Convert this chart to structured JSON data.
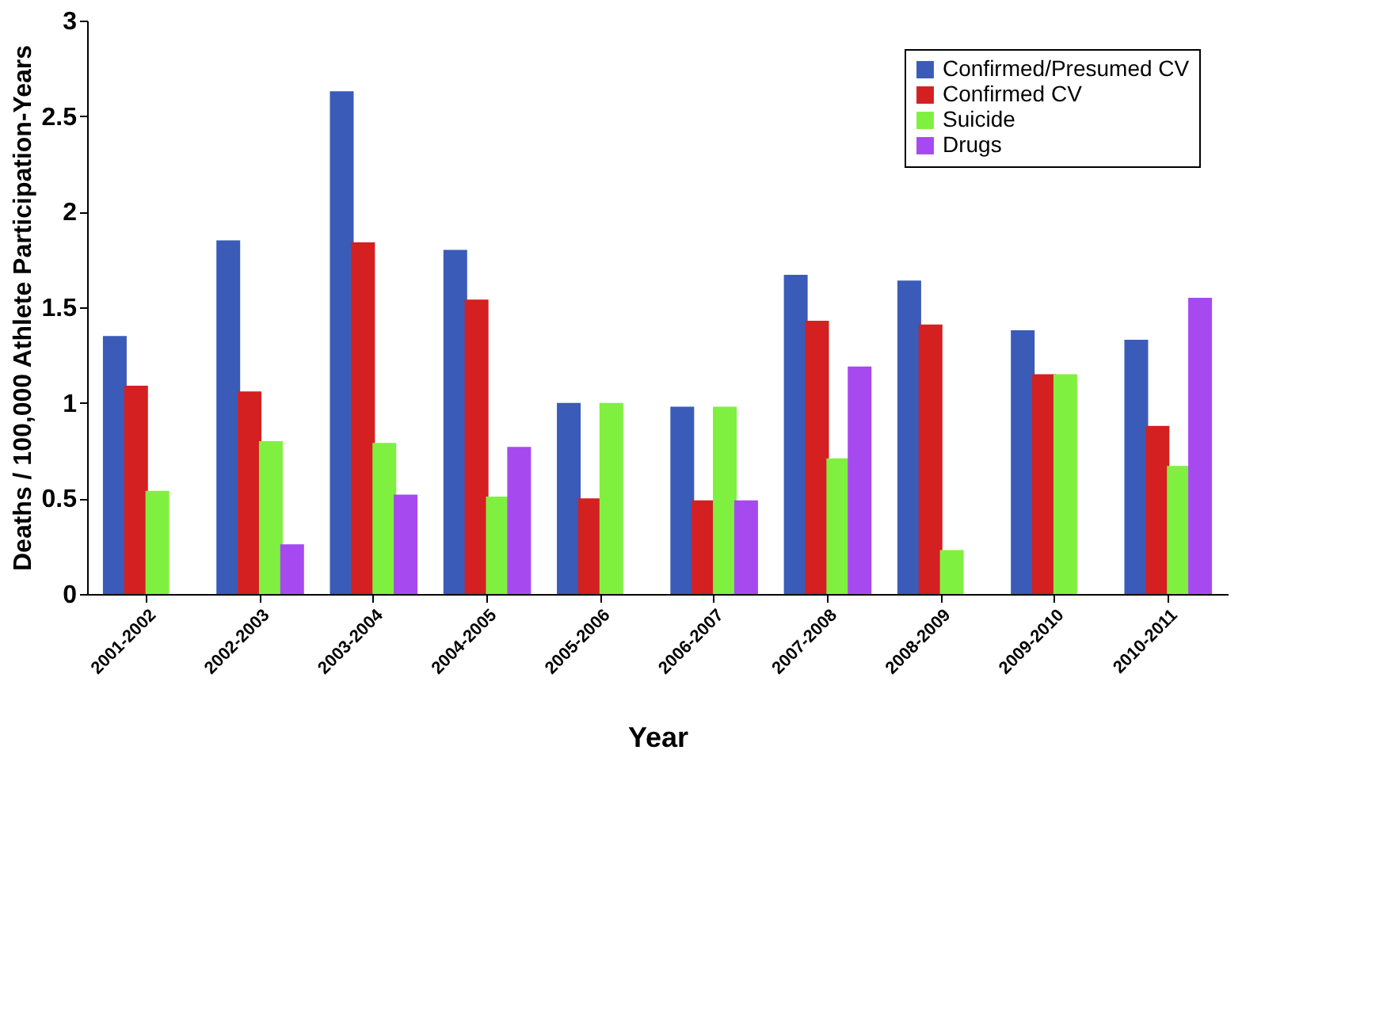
{
  "chart_data": {
    "type": "bar",
    "xlabel": "Year",
    "ylabel": "Deaths / 100,000 Athlete  Participation-Years",
    "categories": [
      "2001-2002",
      "2002-2003",
      "2003-2004",
      "2004-2005",
      "2005-2006",
      "2006-2007",
      "2007-2008",
      "2008-2009",
      "2009-2010",
      "2010-2011"
    ],
    "series": [
      {
        "name": "Confirmed/Presumed CV",
        "color": "#3a5bb8",
        "values": [
          1.35,
          1.85,
          2.63,
          1.8,
          1.0,
          0.98,
          1.67,
          1.64,
          1.38,
          1.33
        ]
      },
      {
        "name": "Confirmed CV",
        "color": "#d42020",
        "values": [
          1.09,
          1.06,
          1.84,
          1.54,
          0.5,
          0.49,
          1.43,
          1.41,
          1.15,
          0.88
        ]
      },
      {
        "name": "Suicide",
        "color": "#80f040",
        "values": [
          0.54,
          0.8,
          0.79,
          0.51,
          1.0,
          0.98,
          0.71,
          0.23,
          1.15,
          0.67
        ]
      },
      {
        "name": "Drugs",
        "color": "#a64af0",
        "values": [
          null,
          0.26,
          0.52,
          0.77,
          null,
          0.49,
          1.19,
          null,
          null,
          1.55
        ]
      }
    ],
    "ylim": [
      0,
      3
    ],
    "yticks": [
      0,
      0.5,
      1,
      1.5,
      2,
      2.5,
      3
    ],
    "grid": false,
    "legend": "top right"
  }
}
